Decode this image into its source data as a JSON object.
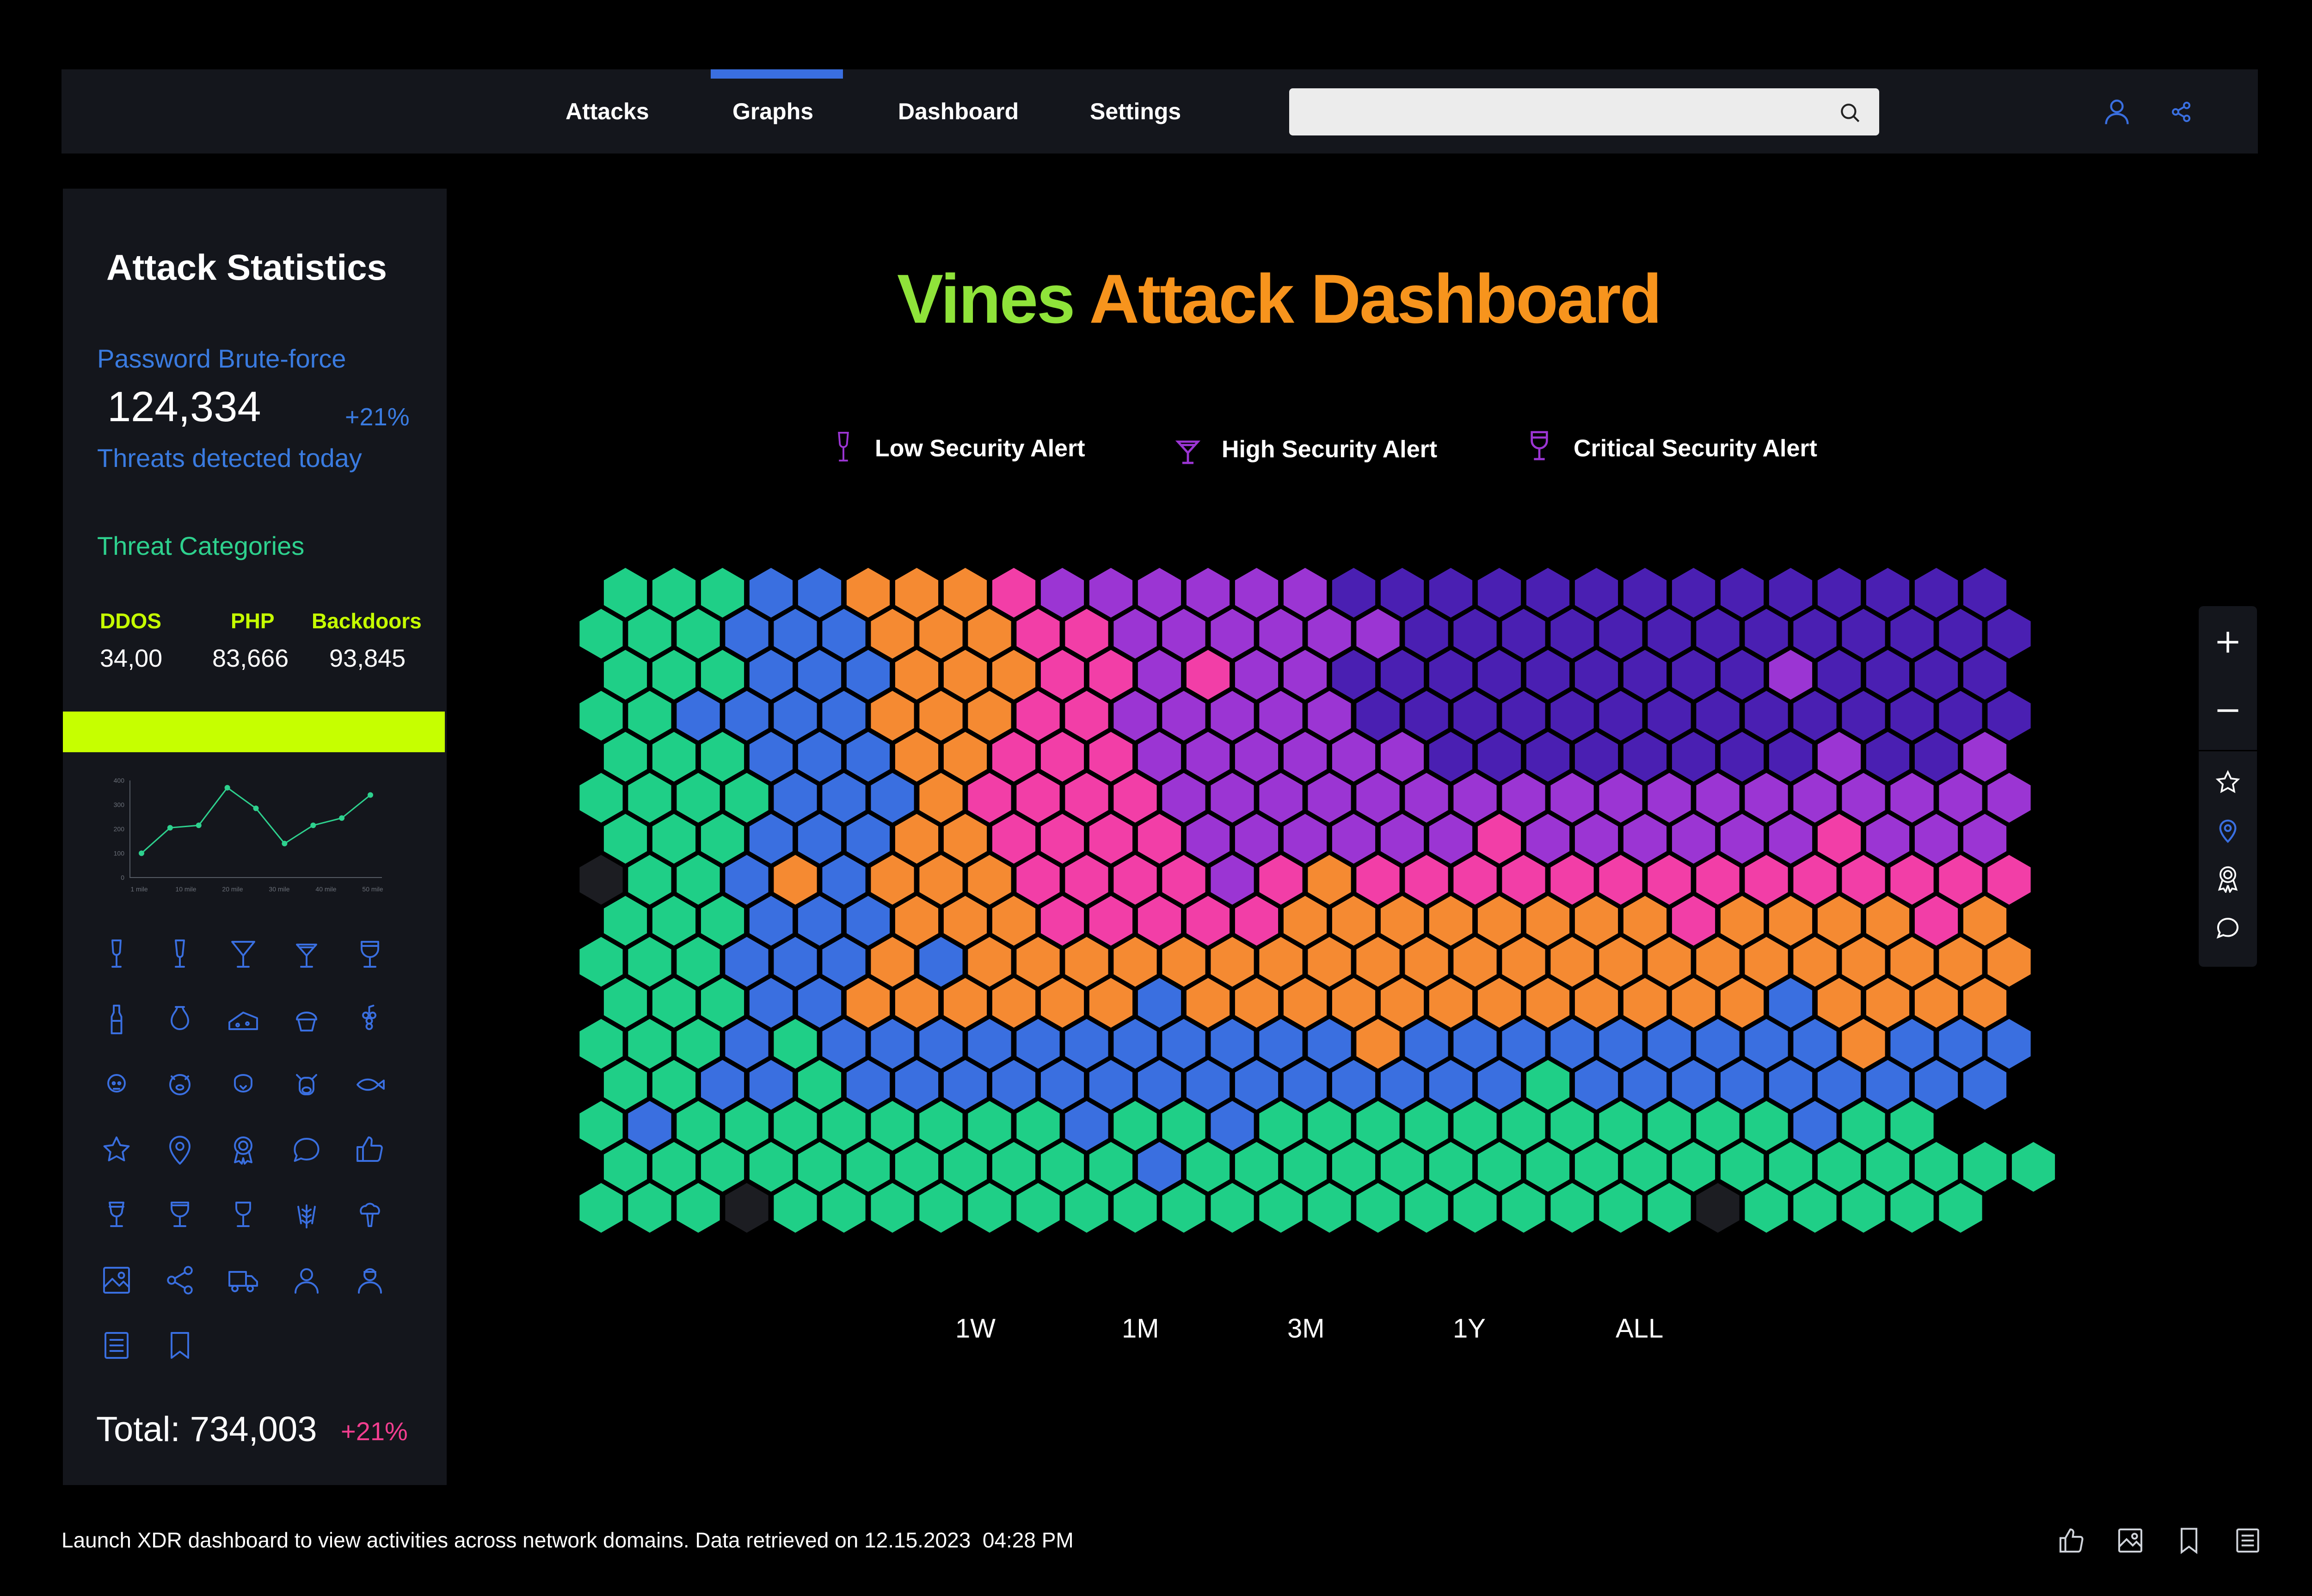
{
  "nav": {
    "items": [
      "Attacks",
      "Graphs",
      "Dashboard",
      "Settings"
    ],
    "active": "Graphs",
    "search_placeholder": ""
  },
  "sidebar": {
    "title": "Attack Statistics",
    "stat_label": "Password Brute-force",
    "stat_value": "124,334",
    "stat_change": "+21%",
    "stat_caption": "Threats detected today",
    "categories_title": "Threat Categories",
    "categories": [
      {
        "name": "DDOS",
        "value": "34,00"
      },
      {
        "name": "PHP",
        "value": "83,666"
      },
      {
        "name": "Backdoors",
        "value": "93,845"
      }
    ],
    "total_label": "Total: 734,003",
    "total_change": "+21%",
    "accent_color": "#c6ff00",
    "icons": [
      "wine-glass-icon",
      "champagne-flute-icon",
      "cocktail-glass-icon",
      "martini-glass-icon",
      "goblet-icon",
      "wine-bottle-icon",
      "vase-icon",
      "cheese-icon",
      "cupcake-icon",
      "grapes-icon",
      "sheep-icon",
      "pig-icon",
      "chicken-icon",
      "cow-icon",
      "fish-icon",
      "star-icon",
      "location-pin-icon",
      "award-ribbon-icon",
      "chat-bubble-icon",
      "thumbs-up-icon",
      "wine-glass-alt-icon",
      "goblet-alt-icon",
      "glass-stand-icon",
      "wheat-icon",
      "broccoli-icon",
      "image-icon",
      "share-icon",
      "truck-icon",
      "user-icon",
      "user-badge-icon",
      "document-icon",
      "bookmark-icon"
    ]
  },
  "mini_chart": {
    "x_ticks": [
      "1 mile",
      "10 mile",
      "20 mile",
      "30 mile",
      "40 mile",
      "50 mile"
    ],
    "y_ticks": [
      "400",
      "300",
      "200",
      "100",
      "0"
    ],
    "values": [
      100,
      205,
      215,
      370,
      285,
      140,
      215,
      245,
      340
    ]
  },
  "dashboard": {
    "title_word1": "Vines",
    "title_word2": "Attack Dashboard",
    "title_color1": "#8fe33a",
    "title_color2": "#f7941d",
    "legend": [
      {
        "label": "Low Security Alert",
        "icon": "champagne-flute-icon"
      },
      {
        "label": "High Security Alert",
        "icon": "martini-glass-icon"
      },
      {
        "label": "Critical Security Alert",
        "icon": "goblet-icon"
      }
    ],
    "ranges": [
      "1W",
      "1M",
      "3M",
      "1Y",
      "ALL"
    ]
  },
  "chart_data": {
    "type": "heatmap",
    "palette": {
      "G": "#1fcf87",
      "B": "#3a6fe0",
      "O": "#f58a32",
      "P": "#f23ea7",
      "V": "#9b35d3",
      "I": "#4a1fb2",
      "X": "#1c1d22"
    },
    "rows": [
      "GGGBBOOOPVVVVVVIIIIIIIIIIIIII",
      "GGGBBBOOOPPVVVVVVIIIIIIIIIIIII",
      "GGGBBBOOOPPVPVVIIIIIIIIIVIIII",
      "GGBBBBOOOPPVVVVVIIIIIIIIIIIIII",
      "GGGBBBOOPPPVVVVVVIIIIIIIIVIIV",
      "GGGGBBBOPPPPVVVVVVVVVVVVVVVVVV",
      "GGGBBBOOPPPPVVVVVVPVVVVVVPVVV",
      "XGGBOBOOOPPPPVPOPPPPPPPPPPPPPP",
      "GGGBBBOOOPPPPPOOOOOOOOPOOOOPO",
      "GGGBBBOBOOOOOOOOOOOOOOOOOOOOOO",
      "GGGBBOOOOOOBOOOOOOOOOOOOBOOOO",
      "GGGBGBBBBBBBBBBBOBBBBBBBBBOBBB",
      "GGBBGBBBBBBBBBBBBBBGBBBBBBBBB",
      "GBGGGGGGGGBGGBGGGGGGGGGGGBGG",
      "GGGGGGGGGGGBGGGGGGGGGGGGGGGGGG",
      "GGGXGGGGGGGGGGGGGGGGGGGXGGGGG"
    ]
  },
  "toolbar": {
    "icons": [
      "zoom-in-icon",
      "zoom-out-icon",
      "star-icon",
      "location-pin-icon",
      "award-ribbon-icon",
      "chat-bubble-icon"
    ]
  },
  "footer": {
    "text": "Launch XDR dashboard to view activities across network domains. Data retrieved on 12.15.2023  04:28 PM",
    "icons": [
      "thumbs-up-icon",
      "image-icon",
      "bookmark-icon",
      "document-icon"
    ]
  }
}
